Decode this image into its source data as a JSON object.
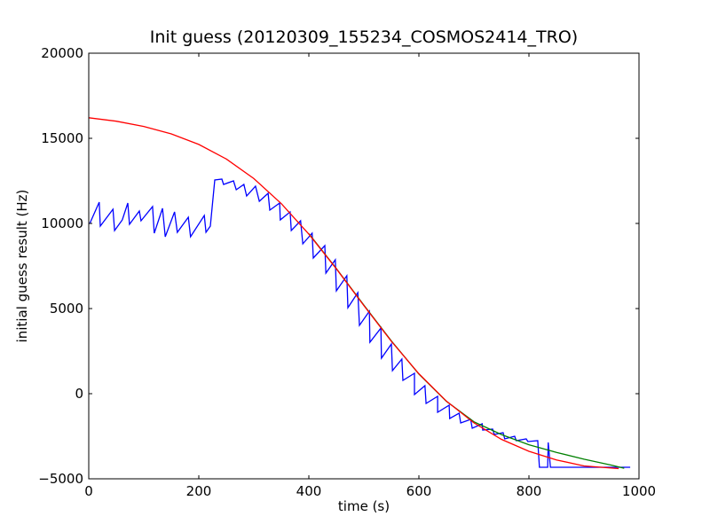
{
  "chart_data": {
    "type": "line",
    "title": "Init guess (20120309_155234_COSMOS2414_TRO)",
    "xlabel": "time (s)",
    "ylabel": "initial guess result (Hz)",
    "xlim": [
      0,
      1000
    ],
    "ylim": [
      -5000,
      20000
    ],
    "xticks": [
      0,
      200,
      400,
      600,
      800,
      1000
    ],
    "xtick_labels": [
      "0",
      "200",
      "400",
      "600",
      "800",
      "1000"
    ],
    "yticks": [
      -5000,
      0,
      5000,
      10000,
      15000,
      20000
    ],
    "ytick_labels": [
      "−5000",
      "0",
      "5000",
      "10000",
      "15000",
      "20000"
    ],
    "grid": false,
    "legend": null,
    "series": [
      {
        "name": "blue",
        "color": "#0000ff",
        "x": [
          2,
          19,
          21,
          44,
          47,
          61,
          71,
          74,
          92,
          95,
          116,
          119,
          134,
          139,
          156,
          161,
          181,
          185,
          210,
          213,
          221,
          229,
          242,
          245,
          263,
          268,
          282,
          287,
          303,
          310,
          326,
          329,
          347,
          348,
          366,
          368,
          385,
          389,
          406,
          408,
          429,
          431,
          448,
          450,
          469,
          471,
          489,
          492,
          510,
          511,
          531,
          532,
          550,
          552,
          569,
          571,
          592,
          592,
          611,
          613,
          634,
          634,
          655,
          656,
          673,
          676,
          694,
          697,
          715,
          716,
          734,
          737,
          753,
          756,
          774,
          777,
          795,
          798,
          816,
          819,
          834,
          835,
          839,
          984
        ],
        "y": [
          10000,
          11250,
          9844,
          10833,
          9583,
          10208,
          11198,
          9948,
          10729,
          10156,
          10990,
          9427,
          10885,
          9219,
          10677,
          9479,
          10365,
          9219,
          10469,
          9479,
          9844,
          12552,
          12604,
          12292,
          12500,
          11979,
          12292,
          11615,
          12188,
          11302,
          11771,
          10781,
          11198,
          10208,
          10677,
          9583,
          10156,
          8802,
          9427,
          7969,
          8698,
          7083,
          7865,
          6042,
          6927,
          5052,
          5938,
          4010,
          4844,
          3021,
          3854,
          2083,
          2917,
          1354,
          2031,
          781,
          1198,
          -52,
          469,
          -573,
          -156,
          -1094,
          -677,
          -1458,
          -1146,
          -1719,
          -1510,
          -2031,
          -1771,
          -2135,
          -2083,
          -2396,
          -2292,
          -2656,
          -2500,
          -2760,
          -2656,
          -2812,
          -2760,
          -4323,
          -4323,
          -2865,
          -4323,
          -4323
        ]
      },
      {
        "name": "green",
        "color": "#008000",
        "x": [
          400,
          450,
          500,
          550,
          600,
          650,
          700,
          750,
          800,
          850,
          900,
          950,
          973
        ],
        "y": [
          9400,
          7350,
          5200,
          3100,
          1150,
          -450,
          -1650,
          -2400,
          -3000,
          -3450,
          -3850,
          -4200,
          -4380
        ]
      },
      {
        "name": "red",
        "color": "#ff0000",
        "x": [
          0,
          50,
          100,
          150,
          200,
          250,
          300,
          350,
          400,
          450,
          500,
          550,
          600,
          650,
          700,
          750,
          800,
          850,
          900,
          963
        ],
        "y": [
          16210,
          16003,
          15698,
          15260,
          14641,
          13784,
          12636,
          11162,
          9370,
          7331,
          5176,
          3072,
          1170,
          -435,
          -1712,
          -2680,
          -3388,
          -3892,
          -4245,
          -4400
        ]
      }
    ]
  }
}
